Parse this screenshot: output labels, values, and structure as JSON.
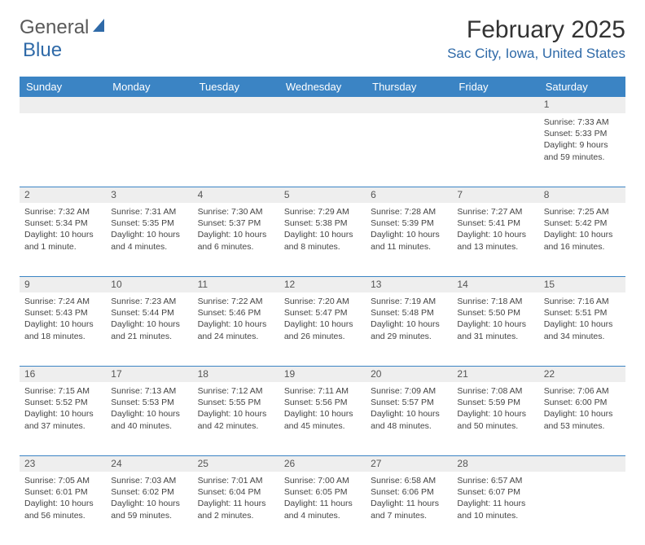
{
  "brand": {
    "part1": "General",
    "part2": "Blue"
  },
  "title": "February 2025",
  "location": "Sac City, Iowa, United States",
  "colors": {
    "header_bg": "#3b84c4",
    "divider": "#3b84c4",
    "daynum_bg": "#eeeeee",
    "location_text": "#2f6aa8",
    "brand_blue": "#2f6aa8",
    "body_text": "#444444"
  },
  "day_headers": [
    "Sunday",
    "Monday",
    "Tuesday",
    "Wednesday",
    "Thursday",
    "Friday",
    "Saturday"
  ],
  "weeks": [
    [
      {
        "n": "",
        "sr": "",
        "ss": "",
        "dl": ""
      },
      {
        "n": "",
        "sr": "",
        "ss": "",
        "dl": ""
      },
      {
        "n": "",
        "sr": "",
        "ss": "",
        "dl": ""
      },
      {
        "n": "",
        "sr": "",
        "ss": "",
        "dl": ""
      },
      {
        "n": "",
        "sr": "",
        "ss": "",
        "dl": ""
      },
      {
        "n": "",
        "sr": "",
        "ss": "",
        "dl": ""
      },
      {
        "n": "1",
        "sr": "Sunrise: 7:33 AM",
        "ss": "Sunset: 5:33 PM",
        "dl": "Daylight: 9 hours and 59 minutes."
      }
    ],
    [
      {
        "n": "2",
        "sr": "Sunrise: 7:32 AM",
        "ss": "Sunset: 5:34 PM",
        "dl": "Daylight: 10 hours and 1 minute."
      },
      {
        "n": "3",
        "sr": "Sunrise: 7:31 AM",
        "ss": "Sunset: 5:35 PM",
        "dl": "Daylight: 10 hours and 4 minutes."
      },
      {
        "n": "4",
        "sr": "Sunrise: 7:30 AM",
        "ss": "Sunset: 5:37 PM",
        "dl": "Daylight: 10 hours and 6 minutes."
      },
      {
        "n": "5",
        "sr": "Sunrise: 7:29 AM",
        "ss": "Sunset: 5:38 PM",
        "dl": "Daylight: 10 hours and 8 minutes."
      },
      {
        "n": "6",
        "sr": "Sunrise: 7:28 AM",
        "ss": "Sunset: 5:39 PM",
        "dl": "Daylight: 10 hours and 11 minutes."
      },
      {
        "n": "7",
        "sr": "Sunrise: 7:27 AM",
        "ss": "Sunset: 5:41 PM",
        "dl": "Daylight: 10 hours and 13 minutes."
      },
      {
        "n": "8",
        "sr": "Sunrise: 7:25 AM",
        "ss": "Sunset: 5:42 PM",
        "dl": "Daylight: 10 hours and 16 minutes."
      }
    ],
    [
      {
        "n": "9",
        "sr": "Sunrise: 7:24 AM",
        "ss": "Sunset: 5:43 PM",
        "dl": "Daylight: 10 hours and 18 minutes."
      },
      {
        "n": "10",
        "sr": "Sunrise: 7:23 AM",
        "ss": "Sunset: 5:44 PM",
        "dl": "Daylight: 10 hours and 21 minutes."
      },
      {
        "n": "11",
        "sr": "Sunrise: 7:22 AM",
        "ss": "Sunset: 5:46 PM",
        "dl": "Daylight: 10 hours and 24 minutes."
      },
      {
        "n": "12",
        "sr": "Sunrise: 7:20 AM",
        "ss": "Sunset: 5:47 PM",
        "dl": "Daylight: 10 hours and 26 minutes."
      },
      {
        "n": "13",
        "sr": "Sunrise: 7:19 AM",
        "ss": "Sunset: 5:48 PM",
        "dl": "Daylight: 10 hours and 29 minutes."
      },
      {
        "n": "14",
        "sr": "Sunrise: 7:18 AM",
        "ss": "Sunset: 5:50 PM",
        "dl": "Daylight: 10 hours and 31 minutes."
      },
      {
        "n": "15",
        "sr": "Sunrise: 7:16 AM",
        "ss": "Sunset: 5:51 PM",
        "dl": "Daylight: 10 hours and 34 minutes."
      }
    ],
    [
      {
        "n": "16",
        "sr": "Sunrise: 7:15 AM",
        "ss": "Sunset: 5:52 PM",
        "dl": "Daylight: 10 hours and 37 minutes."
      },
      {
        "n": "17",
        "sr": "Sunrise: 7:13 AM",
        "ss": "Sunset: 5:53 PM",
        "dl": "Daylight: 10 hours and 40 minutes."
      },
      {
        "n": "18",
        "sr": "Sunrise: 7:12 AM",
        "ss": "Sunset: 5:55 PM",
        "dl": "Daylight: 10 hours and 42 minutes."
      },
      {
        "n": "19",
        "sr": "Sunrise: 7:11 AM",
        "ss": "Sunset: 5:56 PM",
        "dl": "Daylight: 10 hours and 45 minutes."
      },
      {
        "n": "20",
        "sr": "Sunrise: 7:09 AM",
        "ss": "Sunset: 5:57 PM",
        "dl": "Daylight: 10 hours and 48 minutes."
      },
      {
        "n": "21",
        "sr": "Sunrise: 7:08 AM",
        "ss": "Sunset: 5:59 PM",
        "dl": "Daylight: 10 hours and 50 minutes."
      },
      {
        "n": "22",
        "sr": "Sunrise: 7:06 AM",
        "ss": "Sunset: 6:00 PM",
        "dl": "Daylight: 10 hours and 53 minutes."
      }
    ],
    [
      {
        "n": "23",
        "sr": "Sunrise: 7:05 AM",
        "ss": "Sunset: 6:01 PM",
        "dl": "Daylight: 10 hours and 56 minutes."
      },
      {
        "n": "24",
        "sr": "Sunrise: 7:03 AM",
        "ss": "Sunset: 6:02 PM",
        "dl": "Daylight: 10 hours and 59 minutes."
      },
      {
        "n": "25",
        "sr": "Sunrise: 7:01 AM",
        "ss": "Sunset: 6:04 PM",
        "dl": "Daylight: 11 hours and 2 minutes."
      },
      {
        "n": "26",
        "sr": "Sunrise: 7:00 AM",
        "ss": "Sunset: 6:05 PM",
        "dl": "Daylight: 11 hours and 4 minutes."
      },
      {
        "n": "27",
        "sr": "Sunrise: 6:58 AM",
        "ss": "Sunset: 6:06 PM",
        "dl": "Daylight: 11 hours and 7 minutes."
      },
      {
        "n": "28",
        "sr": "Sunrise: 6:57 AM",
        "ss": "Sunset: 6:07 PM",
        "dl": "Daylight: 11 hours and 10 minutes."
      },
      {
        "n": "",
        "sr": "",
        "ss": "",
        "dl": ""
      }
    ]
  ]
}
